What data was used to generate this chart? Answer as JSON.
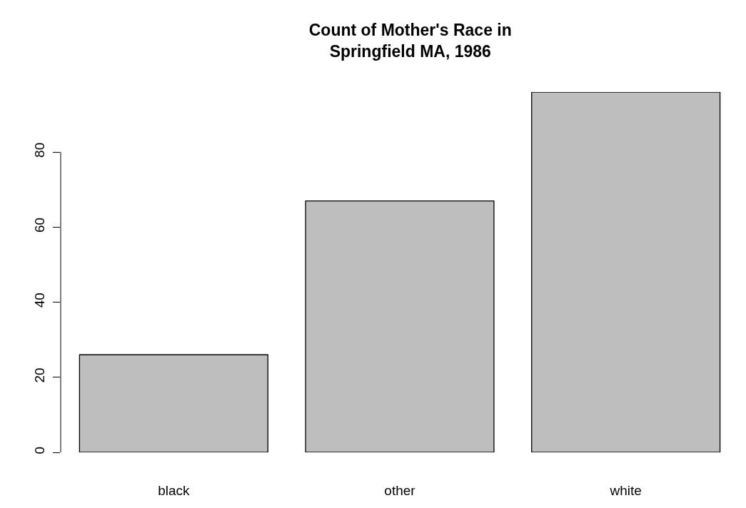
{
  "chart_data": {
    "type": "bar",
    "title": "Count of Mother's Race in\nSpringfield MA, 1986",
    "categories": [
      "black",
      "other",
      "white"
    ],
    "values": [
      26,
      67,
      96
    ],
    "color": "#bebebe",
    "ylim": [
      0,
      96
    ],
    "yticks": [
      0,
      20,
      40,
      60,
      80
    ],
    "grid": false,
    "legend": false
  }
}
